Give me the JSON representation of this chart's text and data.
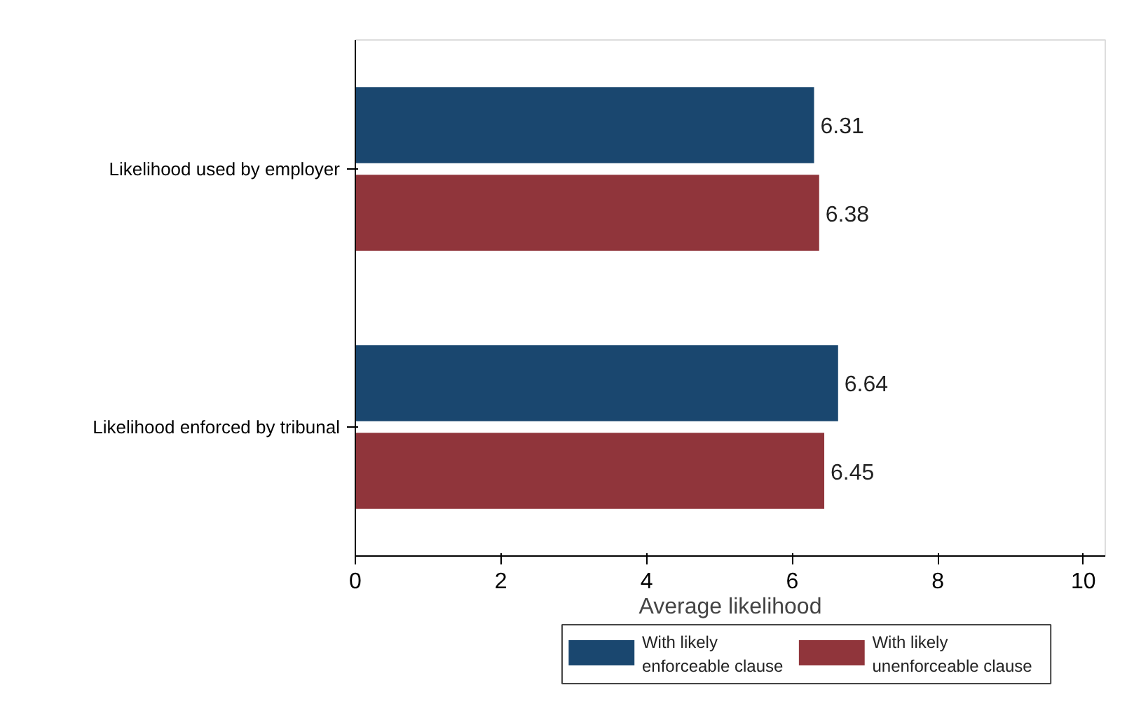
{
  "chart_data": {
    "type": "bar",
    "orientation": "horizontal",
    "categories": [
      "Likelihood used by employer",
      "Likelihood enforced by tribunal"
    ],
    "series": [
      {
        "name": "With likely enforceable clause",
        "color": "#1a476f",
        "values": [
          6.31,
          6.64
        ]
      },
      {
        "name": "With likely unenforceable clause",
        "color": "#90353b",
        "values": [
          6.38,
          6.45
        ]
      }
    ],
    "xlabel": "Average likelihood",
    "xlim": [
      0,
      10.3
    ],
    "xticks": [
      0,
      2,
      4,
      6,
      8,
      10
    ],
    "data_labels": true,
    "grid": false,
    "legend": "bottom"
  }
}
